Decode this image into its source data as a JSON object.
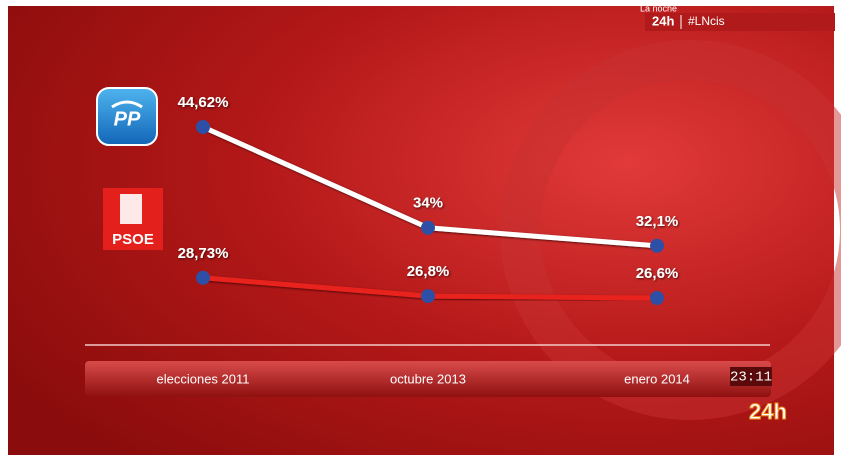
{
  "chart_data": {
    "type": "line",
    "categories": [
      "elecciones 2011",
      "octubre 2013",
      "enero 2014"
    ],
    "series": [
      {
        "name": "PP",
        "color": "#ffffff",
        "values": [
          44.62,
          34,
          32.1
        ],
        "value_labels": [
          "44,62%",
          "34%",
          "32,1%"
        ]
      },
      {
        "name": "PSOE",
        "color": "#e8231b",
        "values": [
          28.73,
          26.8,
          26.6
        ],
        "value_labels": [
          "28,73%",
          "26,8%",
          "26,6%"
        ]
      }
    ],
    "marker_color": "#2d4fa6"
  },
  "screen": {
    "program": "La noche",
    "channel": "24h",
    "hashtag": "#LNcis",
    "clock": "23:11",
    "logo": "24h"
  }
}
